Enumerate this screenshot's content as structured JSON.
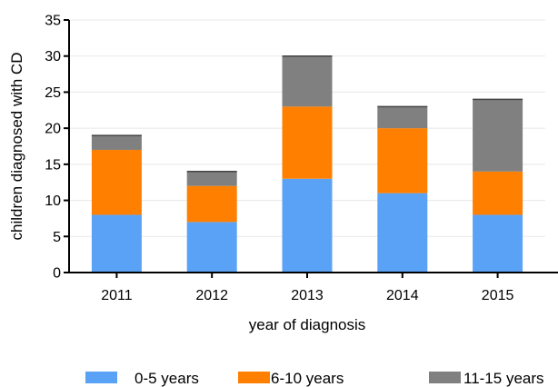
{
  "colors": {
    "series_0_5": "#5aa2f5",
    "series_6_10": "#ff7f00",
    "series_11_15": "#808080",
    "gridline": "#e8e8e8",
    "axis": "#000000"
  },
  "chart_data": {
    "type": "bar",
    "stacked": true,
    "categories": [
      "2011",
      "2012",
      "2013",
      "2014",
      "2015"
    ],
    "series": [
      {
        "name": "0-5 years",
        "values": [
          8,
          7,
          13,
          11,
          8
        ]
      },
      {
        "name": "6-10 years",
        "values": [
          9,
          5,
          10,
          9,
          6
        ]
      },
      {
        "name": "11-15 years",
        "values": [
          2,
          2,
          7,
          3,
          10
        ]
      }
    ],
    "xlabel": "year of diagnosis",
    "ylabel": "children diagnosed with CD",
    "ylim": [
      0,
      35
    ],
    "yticks": [
      0,
      5,
      10,
      15,
      20,
      25,
      30,
      35
    ],
    "grid": true,
    "legend_position": "bottom"
  }
}
